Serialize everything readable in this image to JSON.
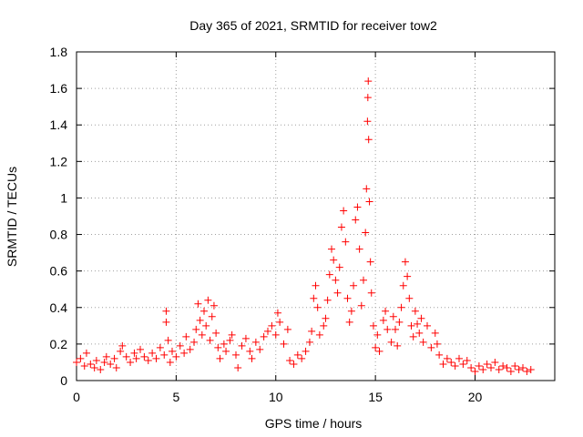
{
  "chart_data": {
    "type": "scatter",
    "title": "Day 365 of 2021, SRMTID for receiver tow2",
    "xlabel": "GPS time / hours",
    "ylabel": "SRMTID / TECUs",
    "xlim": [
      0,
      24
    ],
    "ylim": [
      0,
      1.8
    ],
    "xticks": [
      0,
      5,
      10,
      15,
      20
    ],
    "xtick_labels": [
      "0",
      "5",
      "10",
      "15",
      "20"
    ],
    "yticks": [
      0,
      0.2,
      0.4,
      0.6,
      0.8,
      1.0,
      1.2,
      1.4,
      1.6,
      1.8
    ],
    "ytick_labels": [
      "0",
      "0.2",
      "0.4",
      "0.6",
      "0.8",
      "1",
      "1.2",
      "1.4",
      "1.6",
      "1.8"
    ],
    "grid": true,
    "marker": "+",
    "color": "#ff0000",
    "series": [
      {
        "name": "SRMTID",
        "points": [
          [
            0.0,
            0.1
          ],
          [
            0.2,
            0.12
          ],
          [
            0.4,
            0.08
          ],
          [
            0.5,
            0.15
          ],
          [
            0.7,
            0.09
          ],
          [
            0.9,
            0.07
          ],
          [
            1.0,
            0.11
          ],
          [
            1.2,
            0.06
          ],
          [
            1.4,
            0.1
          ],
          [
            1.5,
            0.13
          ],
          [
            1.7,
            0.09
          ],
          [
            1.9,
            0.12
          ],
          [
            2.0,
            0.07
          ],
          [
            2.2,
            0.16
          ],
          [
            2.3,
            0.19
          ],
          [
            2.5,
            0.13
          ],
          [
            2.7,
            0.1
          ],
          [
            2.9,
            0.15
          ],
          [
            3.0,
            0.12
          ],
          [
            3.2,
            0.17
          ],
          [
            3.4,
            0.13
          ],
          [
            3.6,
            0.11
          ],
          [
            3.8,
            0.15
          ],
          [
            4.0,
            0.12
          ],
          [
            4.2,
            0.18
          ],
          [
            4.4,
            0.14
          ],
          [
            4.5,
            0.38
          ],
          [
            4.5,
            0.32
          ],
          [
            4.6,
            0.22
          ],
          [
            4.7,
            0.1
          ],
          [
            4.8,
            0.16
          ],
          [
            5.0,
            0.13
          ],
          [
            5.2,
            0.19
          ],
          [
            5.4,
            0.15
          ],
          [
            5.5,
            0.24
          ],
          [
            5.7,
            0.17
          ],
          [
            5.9,
            0.21
          ],
          [
            6.0,
            0.28
          ],
          [
            6.1,
            0.42
          ],
          [
            6.2,
            0.33
          ],
          [
            6.3,
            0.25
          ],
          [
            6.4,
            0.38
          ],
          [
            6.5,
            0.3
          ],
          [
            6.6,
            0.44
          ],
          [
            6.7,
            0.22
          ],
          [
            6.8,
            0.35
          ],
          [
            6.9,
            0.41
          ],
          [
            7.0,
            0.26
          ],
          [
            7.1,
            0.18
          ],
          [
            7.2,
            0.12
          ],
          [
            7.4,
            0.2
          ],
          [
            7.5,
            0.16
          ],
          [
            7.7,
            0.22
          ],
          [
            7.8,
            0.25
          ],
          [
            8.0,
            0.14
          ],
          [
            8.1,
            0.07
          ],
          [
            8.3,
            0.19
          ],
          [
            8.5,
            0.23
          ],
          [
            8.7,
            0.16
          ],
          [
            8.8,
            0.12
          ],
          [
            9.0,
            0.21
          ],
          [
            9.2,
            0.17
          ],
          [
            9.4,
            0.24
          ],
          [
            9.6,
            0.27
          ],
          [
            9.8,
            0.3
          ],
          [
            10.0,
            0.25
          ],
          [
            10.1,
            0.37
          ],
          [
            10.2,
            0.32
          ],
          [
            10.4,
            0.2
          ],
          [
            10.6,
            0.28
          ],
          [
            10.7,
            0.11
          ],
          [
            10.9,
            0.09
          ],
          [
            11.1,
            0.14
          ],
          [
            11.3,
            0.12
          ],
          [
            11.5,
            0.16
          ],
          [
            11.7,
            0.21
          ],
          [
            11.8,
            0.27
          ],
          [
            11.9,
            0.45
          ],
          [
            12.0,
            0.52
          ],
          [
            12.1,
            0.4
          ],
          [
            12.2,
            0.25
          ],
          [
            12.4,
            0.3
          ],
          [
            12.5,
            0.34
          ],
          [
            12.6,
            0.44
          ],
          [
            12.7,
            0.58
          ],
          [
            12.8,
            0.72
          ],
          [
            12.9,
            0.66
          ],
          [
            13.0,
            0.55
          ],
          [
            13.1,
            0.48
          ],
          [
            13.2,
            0.62
          ],
          [
            13.3,
            0.84
          ],
          [
            13.4,
            0.93
          ],
          [
            13.5,
            0.76
          ],
          [
            13.6,
            0.45
          ],
          [
            13.7,
            0.32
          ],
          [
            13.8,
            0.38
          ],
          [
            13.9,
            0.52
          ],
          [
            14.0,
            0.88
          ],
          [
            14.1,
            0.95
          ],
          [
            14.2,
            0.72
          ],
          [
            14.3,
            0.41
          ],
          [
            14.4,
            0.55
          ],
          [
            14.5,
            0.81
          ],
          [
            14.55,
            1.05
          ],
          [
            14.6,
            1.42
          ],
          [
            14.62,
            1.55
          ],
          [
            14.64,
            1.64
          ],
          [
            14.66,
            1.32
          ],
          [
            14.7,
            0.98
          ],
          [
            14.75,
            0.65
          ],
          [
            14.8,
            0.48
          ],
          [
            14.9,
            0.3
          ],
          [
            15.0,
            0.18
          ],
          [
            15.1,
            0.25
          ],
          [
            15.2,
            0.16
          ],
          [
            15.4,
            0.33
          ],
          [
            15.5,
            0.38
          ],
          [
            15.6,
            0.28
          ],
          [
            15.8,
            0.21
          ],
          [
            15.9,
            0.35
          ],
          [
            16.0,
            0.28
          ],
          [
            16.1,
            0.19
          ],
          [
            16.2,
            0.32
          ],
          [
            16.3,
            0.4
          ],
          [
            16.4,
            0.52
          ],
          [
            16.5,
            0.65
          ],
          [
            16.6,
            0.57
          ],
          [
            16.7,
            0.45
          ],
          [
            16.8,
            0.3
          ],
          [
            16.9,
            0.24
          ],
          [
            17.0,
            0.38
          ],
          [
            17.1,
            0.31
          ],
          [
            17.2,
            0.26
          ],
          [
            17.3,
            0.34
          ],
          [
            17.4,
            0.21
          ],
          [
            17.6,
            0.3
          ],
          [
            17.8,
            0.18
          ],
          [
            18.0,
            0.26
          ],
          [
            18.1,
            0.2
          ],
          [
            18.2,
            0.14
          ],
          [
            18.4,
            0.09
          ],
          [
            18.6,
            0.12
          ],
          [
            18.8,
            0.1
          ],
          [
            19.0,
            0.08
          ],
          [
            19.2,
            0.12
          ],
          [
            19.4,
            0.09
          ],
          [
            19.6,
            0.11
          ],
          [
            19.8,
            0.07
          ],
          [
            20.0,
            0.05
          ],
          [
            20.2,
            0.08
          ],
          [
            20.4,
            0.06
          ],
          [
            20.6,
            0.09
          ],
          [
            20.8,
            0.07
          ],
          [
            21.0,
            0.1
          ],
          [
            21.2,
            0.06
          ],
          [
            21.4,
            0.08
          ],
          [
            21.6,
            0.07
          ],
          [
            21.8,
            0.05
          ],
          [
            22.0,
            0.08
          ],
          [
            22.2,
            0.06
          ],
          [
            22.4,
            0.07
          ],
          [
            22.6,
            0.05
          ],
          [
            22.8,
            0.06
          ]
        ]
      }
    ]
  }
}
